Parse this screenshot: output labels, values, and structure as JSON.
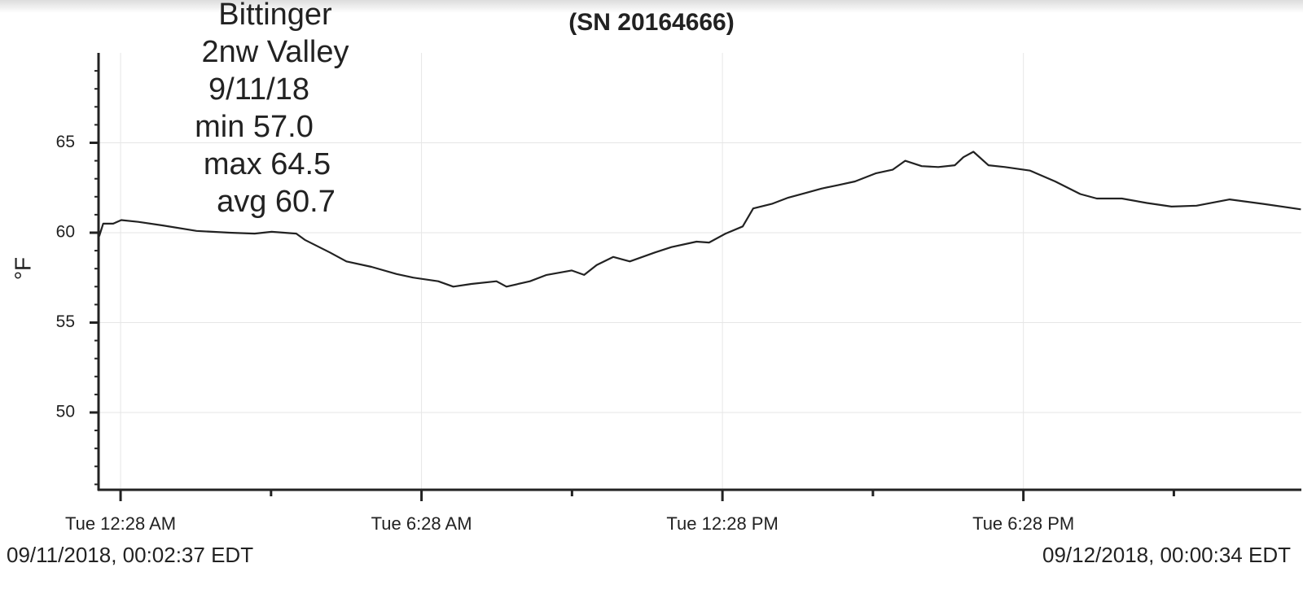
{
  "chart_data": {
    "type": "line",
    "title": "(SN 20164666)",
    "annotation": [
      "Bittinger",
      "2nw Valley",
      "9/11/18",
      "min 57.0",
      "max 64.5",
      "avg 60.7"
    ],
    "ylabel": "°F",
    "start_label": "09/11/2018, 00:02:37 EDT",
    "end_label": "09/12/2018, 00:00:34 EDT",
    "x": [
      0.04,
      0.12,
      0.32,
      0.48,
      0.82,
      1.31,
      1.98,
      2.64,
      3.14,
      3.48,
      3.97,
      4.14,
      4.64,
      4.97,
      5.47,
      5.97,
      6.3,
      6.8,
      7.1,
      7.46,
      7.96,
      8.16,
      8.63,
      8.96,
      9.46,
      9.71,
      9.96,
      10.29,
      10.62,
      11.12,
      11.45,
      11.95,
      12.2,
      12.53,
      12.87,
      13.08,
      13.45,
      13.78,
      14.11,
      14.44,
      14.78,
      15.11,
      15.52,
      15.86,
      16.11,
      16.44,
      16.77,
      17.1,
      17.27,
      17.47,
      17.77,
      18.1,
      18.6,
      19.1,
      19.6,
      19.93,
      20.43,
      20.93,
      21.42,
      21.92,
      22.58,
      23.25,
      24.0
    ],
    "series": [
      {
        "color": "#222222",
        "values": [
          59.8,
          60.5,
          60.5,
          60.7,
          60.6,
          60.4,
          60.1,
          60.0,
          59.95,
          60.05,
          59.95,
          59.6,
          58.9,
          58.4,
          58.1,
          57.7,
          57.5,
          57.3,
          57.0,
          57.15,
          57.3,
          57.0,
          57.3,
          57.65,
          57.9,
          57.65,
          58.2,
          58.65,
          58.4,
          58.9,
          59.2,
          59.5,
          59.45,
          59.95,
          60.35,
          61.35,
          61.6,
          61.95,
          62.2,
          62.45,
          62.65,
          62.85,
          63.3,
          63.5,
          64.0,
          63.7,
          63.65,
          63.75,
          64.2,
          64.5,
          63.75,
          63.65,
          63.45,
          62.85,
          62.15,
          61.9,
          61.9,
          61.65,
          61.45,
          61.5,
          61.85,
          61.6,
          61.3
        ]
      }
    ],
    "xlim": [
      0.0436,
      24.009
    ],
    "xticks": [
      {
        "value": 0.4667,
        "label": "Tue 12:28 AM"
      },
      {
        "value": 6.4667,
        "label": "Tue 6:28 AM"
      },
      {
        "value": 12.4667,
        "label": "Tue 12:28 PM"
      },
      {
        "value": 18.4667,
        "label": "Tue 6:28 PM"
      }
    ],
    "xminorticks": [
      3.4667,
      9.4667,
      15.4667,
      21.4667
    ],
    "ylim": [
      45.7,
      70
    ],
    "yticks": [
      50,
      55,
      60,
      65
    ],
    "yminorticks": [
      46,
      47,
      48,
      49,
      51,
      52,
      53,
      54,
      56,
      57,
      58,
      59,
      61,
      62,
      63,
      64,
      66,
      67,
      68,
      69
    ],
    "grid": true
  }
}
